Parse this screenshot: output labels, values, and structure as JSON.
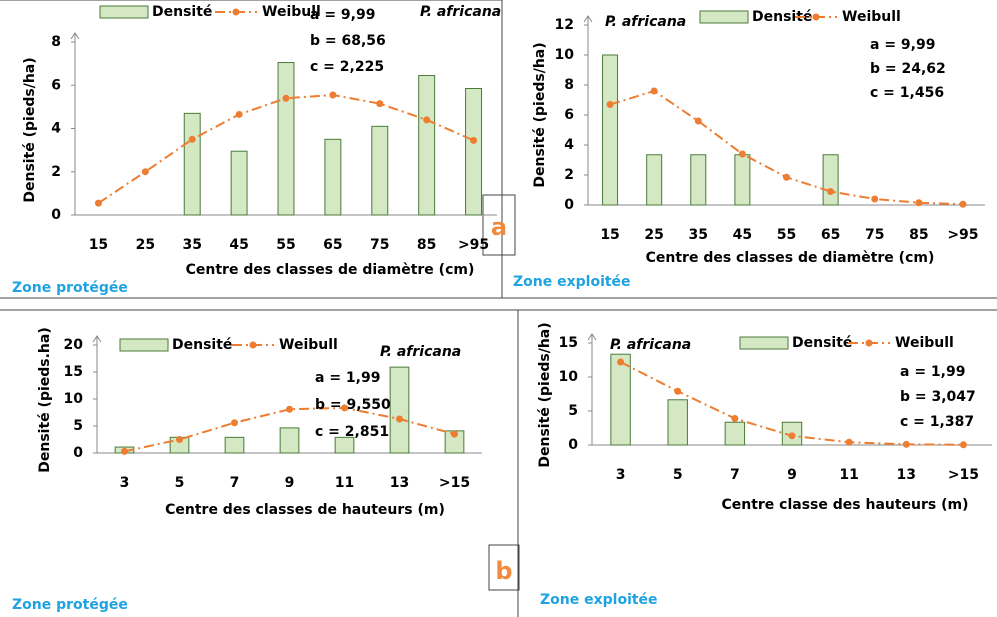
{
  "chart_data": [
    {
      "type": "bar",
      "species": "P. africana",
      "params": [
        "a = 9,99",
        "b = 68,56",
        "c = 2,225"
      ],
      "zone": "Zone protégée",
      "x_label": "Centre des classes de diamètre (cm)",
      "y_label": "Densité (pieds/ha)",
      "categories": [
        "15",
        "25",
        "35",
        "45",
        "55",
        "65",
        "75",
        "85",
        ">95"
      ],
      "series": [
        {
          "name": "Densité",
          "type": "bar",
          "color": "#d5e8c4",
          "values": [
            0,
            0,
            4.7,
            2.95,
            7.05,
            3.5,
            4.1,
            6.45,
            5.85
          ]
        },
        {
          "name": "Weibull",
          "type": "line",
          "color": "#ed7d31",
          "values": [
            0.55,
            2.0,
            3.5,
            4.65,
            5.4,
            5.55,
            5.15,
            4.4,
            3.45
          ]
        }
      ],
      "ylim": [
        0,
        8
      ],
      "yticks": [
        0,
        2,
        4,
        6,
        8
      ]
    },
    {
      "type": "bar",
      "species": "P. africana",
      "params": [
        "a = 9,99",
        "b = 24,62",
        "c = 1,456"
      ],
      "zone": "Zone exploitée",
      "x_label": "Centre des classes de diamètre (cm)",
      "y_label": "Densité (pieds/ha)",
      "categories": [
        "15",
        "25",
        "35",
        "45",
        "55",
        "65",
        "75",
        "85",
        ">95"
      ],
      "series": [
        {
          "name": "Densité",
          "type": "bar",
          "color": "#d5e8c4",
          "values": [
            10,
            3.35,
            3.35,
            3.35,
            0,
            3.35,
            0,
            0,
            0
          ]
        },
        {
          "name": "Weibull",
          "type": "line",
          "color": "#ed7d31",
          "values": [
            6.7,
            7.6,
            5.6,
            3.4,
            1.85,
            0.9,
            0.4,
            0.15,
            0.05
          ]
        }
      ],
      "ylim": [
        0,
        12
      ],
      "yticks": [
        0,
        2,
        4,
        6,
        8,
        10,
        12
      ]
    },
    {
      "type": "bar",
      "species": "P. africana",
      "params": [
        "a = 1,99",
        "b = 9,550",
        "c = 2,851"
      ],
      "zone": "Zone protégée",
      "x_label": "Centre des classes de hauteurs (m)",
      "y_label": "Densité (pieds.ha)",
      "categories": [
        "3",
        "5",
        "7",
        "9",
        "11",
        "13",
        ">15"
      ],
      "series": [
        {
          "name": "Densité",
          "type": "bar",
          "color": "#d5e8c4",
          "values": [
            1.1,
            2.9,
            2.9,
            4.65,
            2.9,
            15.9,
            4.1
          ]
        },
        {
          "name": "Weibull",
          "type": "line",
          "color": "#ed7d31",
          "values": [
            0.3,
            2.5,
            5.6,
            8.1,
            8.35,
            6.3,
            3.5
          ]
        }
      ],
      "ylim": [
        0,
        20
      ],
      "yticks": [
        0,
        5,
        10,
        15,
        20
      ]
    },
    {
      "type": "bar",
      "species": "P. africana",
      "params": [
        "a = 1,99",
        "b = 3,047",
        "c = 1,387"
      ],
      "zone": "Zone exploitée",
      "x_label": "Centre classe des hauteurs (m)",
      "y_label": "Densité (pieds/ha)",
      "categories": [
        "3",
        "5",
        "7",
        "9",
        "11",
        "13",
        ">15"
      ],
      "series": [
        {
          "name": "Densité",
          "type": "bar",
          "color": "#d5e8c4",
          "values": [
            13.35,
            6.65,
            3.35,
            3.35,
            0,
            0,
            0
          ]
        },
        {
          "name": "Weibull",
          "type": "line",
          "color": "#ed7d31",
          "values": [
            12.2,
            7.9,
            3.9,
            1.35,
            0.4,
            0.1,
            0.03
          ]
        }
      ],
      "ylim": [
        0,
        15
      ],
      "yticks": [
        0,
        5,
        10,
        15
      ]
    }
  ],
  "panel_labels": [
    "a",
    "b"
  ]
}
